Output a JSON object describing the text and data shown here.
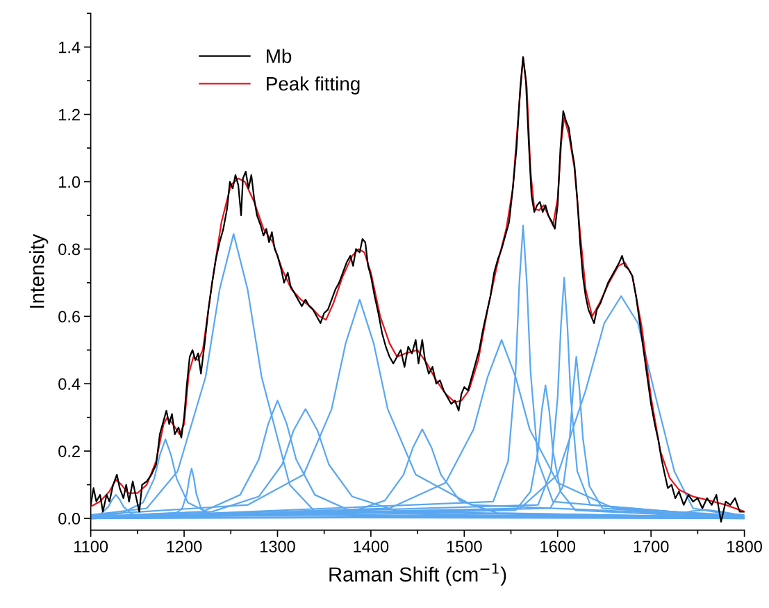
{
  "chart_data": {
    "type": "line",
    "xlabel": "Raman Shift (cm$^{−1}$)",
    "ylabel": "Intensity",
    "xlim": [
      1100,
      1800
    ],
    "ylim": [
      -0.035,
      1.5
    ],
    "xticks": [
      1100,
      1200,
      1300,
      1400,
      1500,
      1600,
      1700,
      1800
    ],
    "yticks": [
      {
        "value": 0,
        "label": "0.0"
      },
      0.2,
      0.4,
      0.6,
      0.8,
      {
        "value": 1,
        "label": "1.0"
      },
      1.2,
      1.4
    ],
    "grid": false,
    "legend": "top left",
    "marker": "none",
    "line_style": "solid",
    "series": [
      {
        "name": "Mb",
        "color": "#000000",
        "x": [
          1100,
          1103,
          1106,
          1110,
          1113,
          1117,
          1120,
          1124,
          1128,
          1131,
          1135,
          1138,
          1141,
          1145,
          1148,
          1152,
          1155,
          1160,
          1165,
          1170,
          1174,
          1178,
          1181,
          1184,
          1187,
          1190,
          1194,
          1197,
          1200,
          1203,
          1206,
          1209,
          1212,
          1215,
          1218,
          1222,
          1226,
          1230,
          1234,
          1238,
          1242,
          1246,
          1249,
          1252,
          1255,
          1258,
          1261,
          1263,
          1266,
          1269,
          1272,
          1275,
          1278,
          1282,
          1285,
          1288,
          1291,
          1294,
          1297,
          1300,
          1304,
          1307,
          1311,
          1314,
          1318,
          1322,
          1326,
          1330,
          1334,
          1338,
          1342,
          1346,
          1350,
          1354,
          1358,
          1362,
          1366,
          1370,
          1374,
          1378,
          1381,
          1384,
          1388,
          1391,
          1394,
          1397,
          1400,
          1404,
          1408,
          1412,
          1416,
          1420,
          1424,
          1428,
          1432,
          1436,
          1440,
          1444,
          1448,
          1451,
          1455,
          1458,
          1462,
          1466,
          1470,
          1474,
          1478,
          1482,
          1486,
          1490,
          1494,
          1497,
          1500,
          1504,
          1508,
          1512,
          1516,
          1520,
          1524,
          1528,
          1532,
          1536,
          1540,
          1544,
          1548,
          1552,
          1556,
          1560,
          1563,
          1566,
          1569,
          1572,
          1575,
          1578,
          1581,
          1584,
          1587,
          1590,
          1594,
          1597,
          1600,
          1603,
          1606,
          1609,
          1612,
          1615,
          1618,
          1621,
          1624,
          1627,
          1630,
          1633,
          1636,
          1639,
          1642,
          1646,
          1650,
          1654,
          1658,
          1662,
          1666,
          1669,
          1672,
          1676,
          1680,
          1684,
          1688,
          1692,
          1696,
          1700,
          1704,
          1708,
          1711,
          1714,
          1718,
          1722,
          1726,
          1730,
          1735,
          1740,
          1745,
          1750,
          1755,
          1760,
          1765,
          1770,
          1775,
          1780,
          1785,
          1790,
          1795,
          1800
        ],
        "values": [
          0.04,
          0.09,
          0.05,
          0.07,
          0.02,
          0.07,
          0.05,
          0.1,
          0.13,
          0.09,
          0.06,
          0.1,
          0.05,
          0.11,
          0.07,
          0.02,
          0.1,
          0.11,
          0.13,
          0.16,
          0.25,
          0.29,
          0.32,
          0.28,
          0.31,
          0.25,
          0.27,
          0.24,
          0.3,
          0.4,
          0.48,
          0.5,
          0.47,
          0.49,
          0.43,
          0.52,
          0.62,
          0.7,
          0.77,
          0.82,
          0.86,
          0.92,
          1.0,
          0.98,
          1.02,
          0.99,
          0.9,
          1.01,
          1.03,
          0.98,
          1.02,
          0.95,
          0.9,
          0.87,
          0.84,
          0.86,
          0.82,
          0.85,
          0.8,
          0.78,
          0.74,
          0.7,
          0.73,
          0.69,
          0.67,
          0.65,
          0.63,
          0.65,
          0.63,
          0.62,
          0.6,
          0.58,
          0.61,
          0.62,
          0.65,
          0.68,
          0.7,
          0.73,
          0.76,
          0.78,
          0.75,
          0.8,
          0.79,
          0.83,
          0.82,
          0.75,
          0.72,
          0.66,
          0.61,
          0.55,
          0.51,
          0.48,
          0.46,
          0.48,
          0.5,
          0.45,
          0.51,
          0.49,
          0.53,
          0.46,
          0.53,
          0.47,
          0.43,
          0.45,
          0.4,
          0.41,
          0.38,
          0.36,
          0.34,
          0.35,
          0.32,
          0.37,
          0.39,
          0.38,
          0.42,
          0.46,
          0.5,
          0.56,
          0.61,
          0.66,
          0.73,
          0.77,
          0.8,
          0.84,
          0.88,
          0.98,
          1.1,
          1.28,
          1.37,
          1.3,
          1.12,
          0.96,
          0.91,
          0.93,
          0.94,
          0.91,
          0.93,
          0.9,
          0.88,
          0.86,
          0.93,
          1.1,
          1.21,
          1.18,
          1.16,
          1.1,
          1.05,
          0.95,
          0.82,
          0.72,
          0.66,
          0.62,
          0.6,
          0.58,
          0.62,
          0.64,
          0.67,
          0.7,
          0.72,
          0.74,
          0.76,
          0.78,
          0.75,
          0.74,
          0.72,
          0.66,
          0.58,
          0.5,
          0.42,
          0.34,
          0.28,
          0.23,
          0.18,
          0.14,
          0.09,
          0.1,
          0.06,
          0.08,
          0.04,
          0.07,
          0.05,
          0.06,
          0.03,
          0.06,
          0.04,
          0.07,
          -0.01,
          0.05,
          0.04,
          0.06,
          0.02,
          0.02
        ]
      },
      {
        "name": "Peak fitting",
        "color": "#e8141c",
        "x": [
          1100,
          1110,
          1120,
          1127,
          1133,
          1140,
          1150,
          1160,
          1170,
          1178,
          1182,
          1188,
          1195,
          1200,
          1205,
          1210,
          1215,
          1220,
          1230,
          1240,
          1250,
          1258,
          1265,
          1275,
          1285,
          1295,
          1305,
          1315,
          1325,
          1335,
          1345,
          1352,
          1360,
          1370,
          1380,
          1387,
          1393,
          1400,
          1410,
          1420,
          1428,
          1437,
          1450,
          1460,
          1470,
          1480,
          1490,
          1497,
          1505,
          1515,
          1525,
          1535,
          1545,
          1552,
          1558,
          1563,
          1567,
          1571,
          1575,
          1580,
          1585,
          1590,
          1595,
          1600,
          1604,
          1607,
          1612,
          1618,
          1624,
          1630,
          1637,
          1645,
          1655,
          1665,
          1672,
          1680,
          1690,
          1700,
          1710,
          1720,
          1730,
          1745,
          1760,
          1780,
          1800
        ],
        "values": [
          0.035,
          0.05,
          0.08,
          0.115,
          0.1,
          0.075,
          0.075,
          0.1,
          0.17,
          0.28,
          0.3,
          0.28,
          0.25,
          0.28,
          0.43,
          0.48,
          0.47,
          0.5,
          0.7,
          0.88,
          0.99,
          1.01,
          1.0,
          0.94,
          0.86,
          0.82,
          0.74,
          0.68,
          0.65,
          0.63,
          0.6,
          0.59,
          0.64,
          0.72,
          0.78,
          0.8,
          0.79,
          0.73,
          0.6,
          0.52,
          0.48,
          0.49,
          0.5,
          0.46,
          0.41,
          0.37,
          0.345,
          0.35,
          0.38,
          0.47,
          0.62,
          0.75,
          0.86,
          0.98,
          1.2,
          1.37,
          1.28,
          1.03,
          0.92,
          0.915,
          0.93,
          0.9,
          0.87,
          0.95,
          1.12,
          1.19,
          1.14,
          1.04,
          0.85,
          0.68,
          0.6,
          0.64,
          0.7,
          0.75,
          0.76,
          0.72,
          0.57,
          0.36,
          0.2,
          0.12,
          0.085,
          0.065,
          0.055,
          0.04,
          0.02
        ]
      },
      {
        "color": "#5aa7f0",
        "x": [
          1100,
          1111,
          1119,
          1123,
          1127,
          1131,
          1135,
          1143,
          1159,
          1800
        ],
        "values": [
          0.006,
          0.014,
          0.035,
          0.056,
          0.07,
          0.056,
          0.035,
          0.014,
          0.004,
          0.0
        ]
      },
      {
        "color": "#5aa7f0",
        "x": [
          1100,
          1132,
          1156,
          1168,
          1174,
          1180,
          1186,
          1192,
          1204,
          1228,
          1800
        ],
        "values": [
          0.006,
          0.014,
          0.047,
          0.118,
          0.188,
          0.235,
          0.188,
          0.118,
          0.047,
          0.014,
          0.001
        ]
      },
      {
        "color": "#5aa7f0",
        "x": [
          1100,
          1188,
          1198,
          1203,
          1205.5,
          1208,
          1210.5,
          1213,
          1218,
          1228,
          1800
        ],
        "values": [
          0.001,
          0.009,
          0.03,
          0.074,
          0.118,
          0.148,
          0.118,
          0.074,
          0.03,
          0.009,
          0.0
        ]
      },
      {
        "color": "#5aa7f0",
        "x": [
          1100,
          1160,
          1193,
          1223,
          1238,
          1253,
          1268,
          1283,
          1313,
          1340,
          1500,
          1800
        ],
        "values": [
          0.01,
          0.03,
          0.14,
          0.42,
          0.68,
          0.845,
          0.68,
          0.42,
          0.1,
          0.02,
          0.01,
          0.003
        ]
      },
      {
        "color": "#5aa7f0",
        "x": [
          1100,
          1220,
          1260,
          1280,
          1290,
          1300,
          1310,
          1320,
          1340,
          1380,
          1800
        ],
        "values": [
          0.005,
          0.02,
          0.07,
          0.175,
          0.28,
          0.35,
          0.28,
          0.175,
          0.07,
          0.02,
          0.003
        ]
      },
      {
        "color": "#5aa7f0",
        "x": [
          1100,
          1230,
          1280,
          1305,
          1317,
          1330,
          1343,
          1355,
          1380,
          1430,
          1800
        ],
        "values": [
          0.005,
          0.02,
          0.065,
          0.16,
          0.26,
          0.325,
          0.26,
          0.16,
          0.065,
          0.02,
          0.004
        ]
      },
      {
        "color": "#5aa7f0",
        "x": [
          1100,
          1268,
          1328,
          1358,
          1373,
          1388,
          1403,
          1418,
          1448,
          1508,
          1800
        ],
        "values": [
          0.01,
          0.04,
          0.13,
          0.325,
          0.52,
          0.65,
          0.52,
          0.325,
          0.13,
          0.04,
          0.006
        ]
      },
      {
        "color": "#5aa7f0",
        "x": [
          1100,
          1375,
          1415,
          1435,
          1445,
          1455,
          1465,
          1475,
          1495,
          1535,
          1800
        ],
        "values": [
          0.003,
          0.016,
          0.053,
          0.13,
          0.21,
          0.265,
          0.21,
          0.13,
          0.053,
          0.016,
          0.002
        ]
      },
      {
        "color": "#5aa7f0",
        "x": [
          1100,
          1420,
          1480,
          1510,
          1525,
          1540,
          1555,
          1570,
          1600,
          1660,
          1800
        ],
        "values": [
          0.004,
          0.03,
          0.106,
          0.265,
          0.42,
          0.53,
          0.42,
          0.265,
          0.106,
          0.03,
          0.008
        ]
      },
      {
        "color": "#5aa7f0",
        "x": [
          1100,
          1531,
          1547,
          1555,
          1559,
          1563,
          1567,
          1571,
          1579,
          1595,
          1800
        ],
        "values": [
          0.001,
          0.05,
          0.17,
          0.435,
          0.7,
          0.87,
          0.7,
          0.435,
          0.17,
          0.05,
          0.002
        ]
      },
      {
        "color": "#5aa7f0",
        "x": [
          1100,
          1555,
          1571,
          1579,
          1583,
          1587,
          1591,
          1595,
          1603,
          1619,
          1800
        ],
        "values": [
          0.0,
          0.024,
          0.08,
          0.2,
          0.32,
          0.395,
          0.32,
          0.2,
          0.08,
          0.024,
          0.001
        ]
      },
      {
        "color": "#5aa7f0",
        "x": [
          1100,
          1579,
          1593,
          1600,
          1603.5,
          1607,
          1610.5,
          1614,
          1621,
          1635,
          1800
        ],
        "values": [
          0.0,
          0.04,
          0.14,
          0.36,
          0.57,
          0.715,
          0.57,
          0.36,
          0.14,
          0.04,
          0.002
        ]
      },
      {
        "color": "#5aa7f0",
        "x": [
          1100,
          1592,
          1606,
          1613,
          1616.5,
          1620,
          1623.5,
          1627,
          1634,
          1648,
          1800
        ],
        "values": [
          0.0,
          0.03,
          0.096,
          0.24,
          0.38,
          0.48,
          0.38,
          0.24,
          0.096,
          0.03,
          0.001
        ]
      },
      {
        "color": "#5aa7f0",
        "x": [
          1100,
          1560,
          1600,
          1630,
          1650,
          1668,
          1686,
          1705,
          1725,
          1745,
          1800
        ],
        "values": [
          0.003,
          0.03,
          0.13,
          0.38,
          0.58,
          0.66,
          0.58,
          0.36,
          0.14,
          0.03,
          0.005
        ]
      },
      {
        "color": "#5aa7f0",
        "x": [
          1100,
          1700,
          1730,
          1745,
          1760,
          1775,
          1790,
          1800
        ],
        "values": [
          0.0,
          0.005,
          0.014,
          0.022,
          0.025,
          0.02,
          0.013,
          0.01
        ]
      }
    ]
  }
}
